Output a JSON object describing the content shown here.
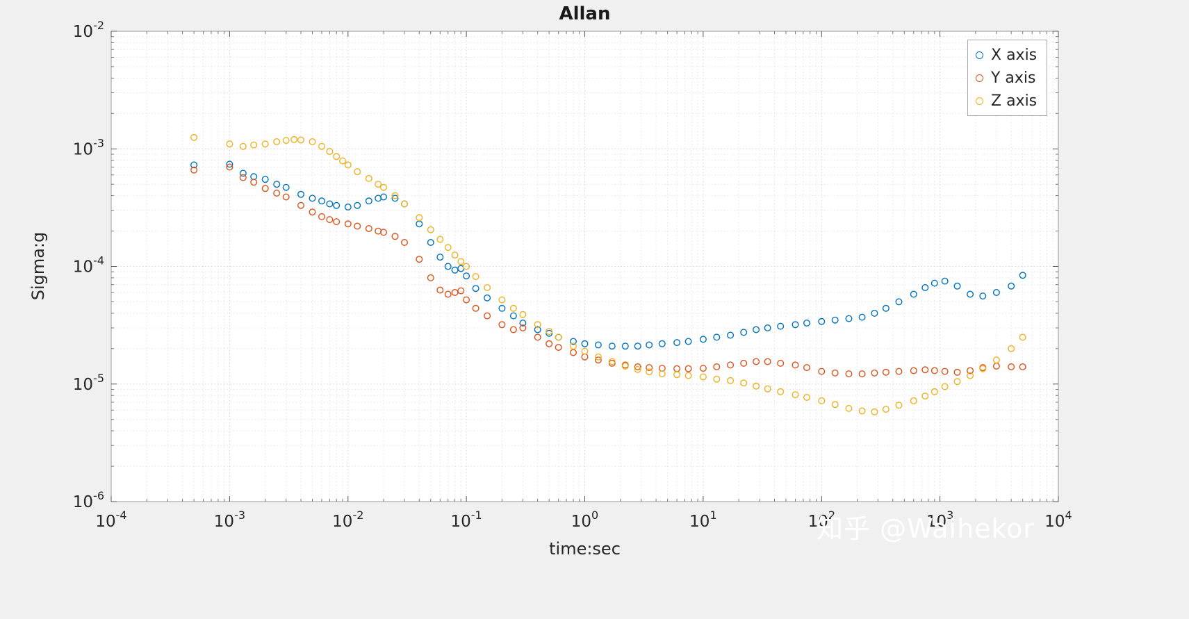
{
  "title": "Allan",
  "axes": {
    "xlabel": "time:sec",
    "ylabel": "Sigma:g",
    "x_tick_exponents": [
      -4,
      -3,
      -2,
      -1,
      0,
      1,
      2,
      3,
      4
    ],
    "y_tick_exponents": [
      -6,
      -5,
      -4,
      -3,
      -2
    ]
  },
  "legend": {
    "items": [
      {
        "label": "X axis",
        "color": "#0072BD"
      },
      {
        "label": "Y axis",
        "color": "#D95319"
      },
      {
        "label": "Z axis",
        "color": "#EDB120"
      }
    ]
  },
  "watermark": "知乎 @Waihekor",
  "colors": {
    "background": "#f0f0f0",
    "plot_background": "#ffffff",
    "grid_major": "#d4d4d4",
    "grid_minor": "#e4e4e4",
    "axis_box": "#999999",
    "text": "#262626"
  },
  "chart_data": {
    "type": "scatter",
    "title": "Allan",
    "xlabel": "time:sec",
    "ylabel": "Sigma:g",
    "xscale": "log",
    "yscale": "log",
    "xlim": [
      0.0001,
      10000.0
    ],
    "ylim": [
      1e-06,
      0.01
    ],
    "grid": true,
    "legend_position": "top-right",
    "series": [
      {
        "name": "X axis",
        "color": "#0072BD",
        "marker": "circle",
        "points": [
          [
            0.0005,
            0.00073
          ],
          [
            0.001,
            0.00074
          ],
          [
            0.0013,
            0.00062
          ],
          [
            0.0016,
            0.00058
          ],
          [
            0.002,
            0.00055
          ],
          [
            0.0025,
            0.0005
          ],
          [
            0.003,
            0.00047
          ],
          [
            0.004,
            0.00041
          ],
          [
            0.005,
            0.00038
          ],
          [
            0.006,
            0.00036
          ],
          [
            0.007,
            0.00034
          ],
          [
            0.008,
            0.00033
          ],
          [
            0.01,
            0.00032
          ],
          [
            0.012,
            0.00033
          ],
          [
            0.015,
            0.00036
          ],
          [
            0.018,
            0.00038
          ],
          [
            0.02,
            0.00039
          ],
          [
            0.025,
            0.00038
          ],
          [
            0.03,
            0.00034
          ],
          [
            0.04,
            0.00023
          ],
          [
            0.05,
            0.00016
          ],
          [
            0.06,
            0.00012
          ],
          [
            0.07,
            0.0001
          ],
          [
            0.08,
            9.3e-05
          ],
          [
            0.09,
            9.6e-05
          ],
          [
            0.1,
            8.3e-05
          ],
          [
            0.12,
            6.5e-05
          ],
          [
            0.15,
            5.4e-05
          ],
          [
            0.2,
            4.4e-05
          ],
          [
            0.25,
            3.8e-05
          ],
          [
            0.3,
            3.3e-05
          ],
          [
            0.4,
            2.9e-05
          ],
          [
            0.5,
            2.7e-05
          ],
          [
            0.6,
            2.5e-05
          ],
          [
            0.8,
            2.3e-05
          ],
          [
            1,
            2.2e-05
          ],
          [
            1.3,
            2.15e-05
          ],
          [
            1.7,
            2.1e-05
          ],
          [
            2.2,
            2.1e-05
          ],
          [
            2.8,
            2.1e-05
          ],
          [
            3.5,
            2.15e-05
          ],
          [
            4.5,
            2.2e-05
          ],
          [
            6,
            2.25e-05
          ],
          [
            7.5,
            2.3e-05
          ],
          [
            10,
            2.4e-05
          ],
          [
            13,
            2.5e-05
          ],
          [
            17,
            2.6e-05
          ],
          [
            22,
            2.75e-05
          ],
          [
            28,
            2.9e-05
          ],
          [
            35,
            3e-05
          ],
          [
            45,
            3.1e-05
          ],
          [
            60,
            3.2e-05
          ],
          [
            75,
            3.3e-05
          ],
          [
            100,
            3.4e-05
          ],
          [
            130,
            3.5e-05
          ],
          [
            170,
            3.6e-05
          ],
          [
            220,
            3.7e-05
          ],
          [
            280,
            4e-05
          ],
          [
            350,
            4.4e-05
          ],
          [
            450,
            5e-05
          ],
          [
            600,
            5.8e-05
          ],
          [
            750,
            6.6e-05
          ],
          [
            900,
            7.2e-05
          ],
          [
            1100,
            7.5e-05
          ],
          [
            1400,
            6.8e-05
          ],
          [
            1800,
            5.8e-05
          ],
          [
            2300,
            5.6e-05
          ],
          [
            3000,
            6e-05
          ],
          [
            4000,
            6.8e-05
          ],
          [
            5000,
            8.4e-05
          ]
        ]
      },
      {
        "name": "Y axis",
        "color": "#D95319",
        "marker": "circle",
        "points": [
          [
            0.0005,
            0.00066
          ],
          [
            0.001,
            0.0007
          ],
          [
            0.0013,
            0.00057
          ],
          [
            0.0016,
            0.00052
          ],
          [
            0.002,
            0.00046
          ],
          [
            0.0025,
            0.00042
          ],
          [
            0.003,
            0.00039
          ],
          [
            0.004,
            0.00033
          ],
          [
            0.005,
            0.00029
          ],
          [
            0.006,
            0.000265
          ],
          [
            0.007,
            0.00025
          ],
          [
            0.008,
            0.00024
          ],
          [
            0.01,
            0.00023
          ],
          [
            0.012,
            0.00022
          ],
          [
            0.015,
            0.00021
          ],
          [
            0.018,
            0.0002
          ],
          [
            0.02,
            0.000195
          ],
          [
            0.025,
            0.00018
          ],
          [
            0.03,
            0.00016
          ],
          [
            0.04,
            0.000115
          ],
          [
            0.05,
            8e-05
          ],
          [
            0.06,
            6.3e-05
          ],
          [
            0.07,
            5.8e-05
          ],
          [
            0.08,
            6e-05
          ],
          [
            0.09,
            6.2e-05
          ],
          [
            0.1,
            5.2e-05
          ],
          [
            0.12,
            4.4e-05
          ],
          [
            0.15,
            3.8e-05
          ],
          [
            0.2,
            3.2e-05
          ],
          [
            0.25,
            2.9e-05
          ],
          [
            0.3,
            3e-05
          ],
          [
            0.4,
            2.5e-05
          ],
          [
            0.5,
            2.2e-05
          ],
          [
            0.6,
            2.05e-05
          ],
          [
            0.8,
            1.85e-05
          ],
          [
            1,
            1.7e-05
          ],
          [
            1.3,
            1.6e-05
          ],
          [
            1.7,
            1.5e-05
          ],
          [
            2.2,
            1.45e-05
          ],
          [
            2.8,
            1.4e-05
          ],
          [
            3.5,
            1.38e-05
          ],
          [
            4.5,
            1.36e-05
          ],
          [
            6,
            1.35e-05
          ],
          [
            7.5,
            1.35e-05
          ],
          [
            10,
            1.36e-05
          ],
          [
            13,
            1.4e-05
          ],
          [
            17,
            1.45e-05
          ],
          [
            22,
            1.5e-05
          ],
          [
            28,
            1.55e-05
          ],
          [
            35,
            1.55e-05
          ],
          [
            45,
            1.5e-05
          ],
          [
            60,
            1.45e-05
          ],
          [
            75,
            1.38e-05
          ],
          [
            100,
            1.28e-05
          ],
          [
            130,
            1.24e-05
          ],
          [
            170,
            1.22e-05
          ],
          [
            220,
            1.22e-05
          ],
          [
            280,
            1.24e-05
          ],
          [
            350,
            1.26e-05
          ],
          [
            450,
            1.28e-05
          ],
          [
            600,
            1.3e-05
          ],
          [
            750,
            1.32e-05
          ],
          [
            900,
            1.3e-05
          ],
          [
            1100,
            1.28e-05
          ],
          [
            1400,
            1.26e-05
          ],
          [
            1800,
            1.3e-05
          ],
          [
            2300,
            1.38e-05
          ],
          [
            3000,
            1.42e-05
          ],
          [
            4000,
            1.4e-05
          ],
          [
            5000,
            1.4e-05
          ]
        ]
      },
      {
        "name": "Z axis",
        "color": "#EDB120",
        "marker": "circle",
        "points": [
          [
            0.0005,
            0.00125
          ],
          [
            0.001,
            0.0011
          ],
          [
            0.0013,
            0.00105
          ],
          [
            0.0016,
            0.00108
          ],
          [
            0.002,
            0.0011
          ],
          [
            0.0025,
            0.00115
          ],
          [
            0.003,
            0.00118
          ],
          [
            0.0035,
            0.0012
          ],
          [
            0.004,
            0.00119
          ],
          [
            0.005,
            0.00115
          ],
          [
            0.006,
            0.00105
          ],
          [
            0.007,
            0.00095
          ],
          [
            0.008,
            0.00086
          ],
          [
            0.009,
            0.00079
          ],
          [
            0.01,
            0.00073
          ],
          [
            0.012,
            0.00064
          ],
          [
            0.015,
            0.00056
          ],
          [
            0.018,
            0.0005
          ],
          [
            0.02,
            0.00047
          ],
          [
            0.025,
            0.0004
          ],
          [
            0.03,
            0.00034
          ],
          [
            0.04,
            0.00026
          ],
          [
            0.05,
            0.000205
          ],
          [
            0.06,
            0.00017
          ],
          [
            0.07,
            0.000145
          ],
          [
            0.08,
            0.000125
          ],
          [
            0.09,
            0.00011
          ],
          [
            0.1,
            0.0001
          ],
          [
            0.12,
            8.2e-05
          ],
          [
            0.15,
            6.6e-05
          ],
          [
            0.2,
            5.2e-05
          ],
          [
            0.25,
            4.4e-05
          ],
          [
            0.3,
            3.9e-05
          ],
          [
            0.4,
            3.2e-05
          ],
          [
            0.5,
            2.8e-05
          ],
          [
            0.6,
            2.5e-05
          ],
          [
            0.8,
            2.1e-05
          ],
          [
            1,
            1.9e-05
          ],
          [
            1.3,
            1.7e-05
          ],
          [
            1.7,
            1.55e-05
          ],
          [
            2.2,
            1.42e-05
          ],
          [
            2.8,
            1.33e-05
          ],
          [
            3.5,
            1.27e-05
          ],
          [
            4.5,
            1.22e-05
          ],
          [
            6,
            1.2e-05
          ],
          [
            7.5,
            1.18e-05
          ],
          [
            10,
            1.15e-05
          ],
          [
            13,
            1.1e-05
          ],
          [
            17,
            1.07e-05
          ],
          [
            22,
            1.02e-05
          ],
          [
            28,
            9.6e-06
          ],
          [
            35,
            9.1e-06
          ],
          [
            45,
            8.6e-06
          ],
          [
            60,
            8.1e-06
          ],
          [
            75,
            7.7e-06
          ],
          [
            100,
            7.2e-06
          ],
          [
            130,
            6.7e-06
          ],
          [
            170,
            6.2e-06
          ],
          [
            220,
            5.9e-06
          ],
          [
            280,
            5.8e-06
          ],
          [
            350,
            6.1e-06
          ],
          [
            450,
            6.6e-06
          ],
          [
            600,
            7.2e-06
          ],
          [
            750,
            7.9e-06
          ],
          [
            900,
            8.6e-06
          ],
          [
            1100,
            9.5e-06
          ],
          [
            1400,
            1.05e-05
          ],
          [
            1800,
            1.18e-05
          ],
          [
            2300,
            1.35e-05
          ],
          [
            3000,
            1.6e-05
          ],
          [
            4000,
            2e-05
          ],
          [
            5000,
            2.5e-05
          ]
        ]
      }
    ]
  }
}
